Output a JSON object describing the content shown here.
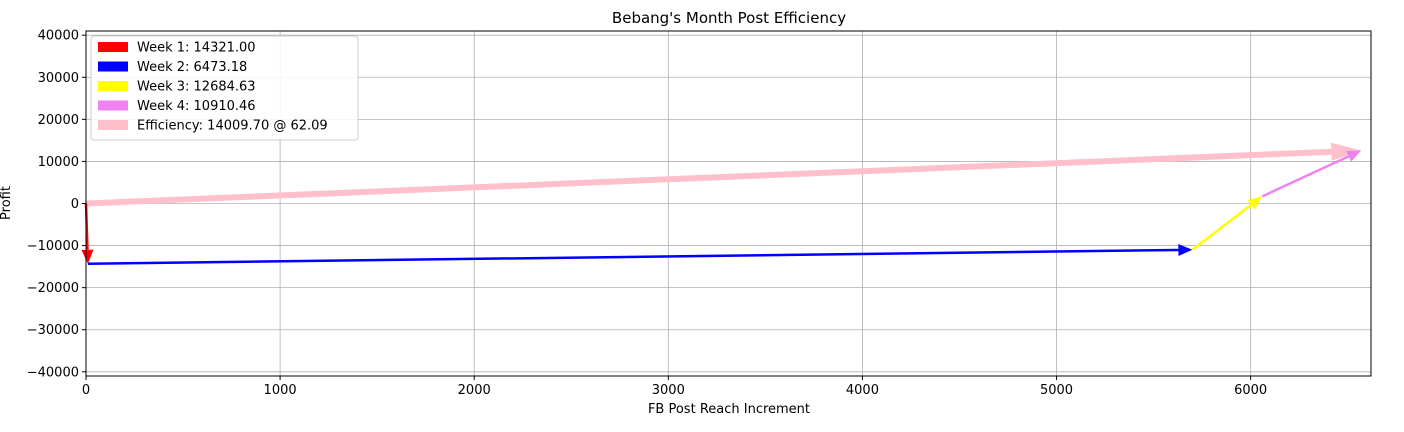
{
  "chart_data": {
    "type": "line",
    "title": "Bebang's Month Post Efficiency",
    "xlabel": "FB Post Reach Increment",
    "ylabel": "Profit",
    "xlim": [
      0,
      6620
    ],
    "ylim": [
      -41000,
      41000
    ],
    "grid": true,
    "legend_position": "top-left",
    "x_ticks": [
      0,
      1000,
      2000,
      3000,
      4000,
      5000,
      6000
    ],
    "y_ticks": [
      -40000,
      -30000,
      -20000,
      -10000,
      0,
      10000,
      20000,
      30000,
      40000
    ],
    "x_tick_labels": [
      "0",
      "1000",
      "2000",
      "3000",
      "4000",
      "5000",
      "6000"
    ],
    "y_tick_labels": [
      "−40000",
      "−30000",
      "−20000",
      "−10000",
      "0",
      "10000",
      "20000",
      "30000",
      "40000"
    ],
    "series": [
      {
        "name": "Week 1: 14321.00",
        "color": "#ff0000",
        "from": [
          0,
          0
        ],
        "to": [
          10,
          -14321
        ]
      },
      {
        "name": "Week 2: 6473.18",
        "color": "#0000ff",
        "from": [
          10,
          -14321
        ],
        "to": [
          5700,
          -11000
        ]
      },
      {
        "name": "Week 3: 12684.63",
        "color": "#ffff00",
        "from": [
          5700,
          -11000
        ],
        "to": [
          6060,
          1700
        ]
      },
      {
        "name": "Week 4: 10910.46",
        "color": "#ee82ee",
        "from": [
          6060,
          1700
        ],
        "to": [
          6570,
          12600
        ]
      },
      {
        "name": "Efficiency: 14009.70 @ 62.09",
        "color": "#ffc0cb",
        "from": [
          0,
          0
        ],
        "to": [
          6570,
          12600
        ]
      }
    ]
  }
}
